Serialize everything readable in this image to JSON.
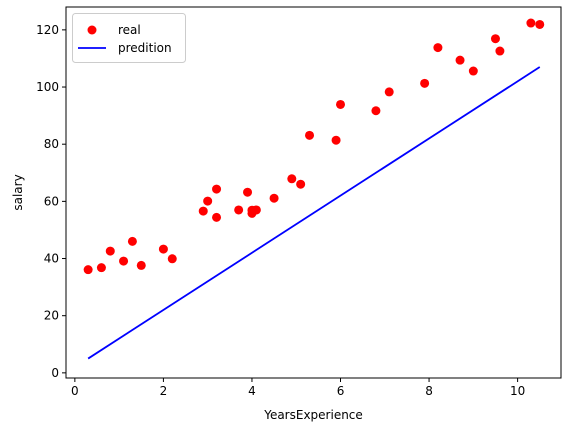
{
  "chart_data": {
    "type": "scatter",
    "xlabel": "YearsExperience",
    "ylabel": "salary",
    "xlim": [
      -0.2,
      10.98
    ],
    "ylim": [
      -1.8,
      128.0
    ],
    "xticks": [
      0,
      2,
      4,
      6,
      8,
      10
    ],
    "yticks": [
      0,
      20,
      40,
      60,
      80,
      100,
      120
    ],
    "grid": false,
    "legend_position": "top-left",
    "series": [
      {
        "name": "real",
        "kind": "scatter",
        "color": "#ff0000",
        "points": [
          [
            0.3,
            36.1
          ],
          [
            0.6,
            36.8
          ],
          [
            0.8,
            42.6
          ],
          [
            1.1,
            39.1
          ],
          [
            1.3,
            46.0
          ],
          [
            1.5,
            37.6
          ],
          [
            2.0,
            43.3
          ],
          [
            2.2,
            39.9
          ],
          [
            2.9,
            56.6
          ],
          [
            3.0,
            60.1
          ],
          [
            3.2,
            54.4
          ],
          [
            3.2,
            64.3
          ],
          [
            3.7,
            57.0
          ],
          [
            3.9,
            63.2
          ],
          [
            4.0,
            55.8
          ],
          [
            4.0,
            56.9
          ],
          [
            4.1,
            57.0
          ],
          [
            4.5,
            61.1
          ],
          [
            4.9,
            67.9
          ],
          [
            5.1,
            66.0
          ],
          [
            5.3,
            83.1
          ],
          [
            5.9,
            81.4
          ],
          [
            6.0,
            93.9
          ],
          [
            6.8,
            91.7
          ],
          [
            7.1,
            98.3
          ],
          [
            7.9,
            101.3
          ],
          [
            8.2,
            113.8
          ],
          [
            8.7,
            109.4
          ],
          [
            9.0,
            105.6
          ],
          [
            9.5,
            116.9
          ],
          [
            9.6,
            112.6
          ],
          [
            10.3,
            122.4
          ],
          [
            10.5,
            121.9
          ]
        ]
      },
      {
        "name": "predition",
        "kind": "line",
        "color": "#0000ff",
        "points": [
          [
            0.3,
            5.0
          ],
          [
            10.5,
            107.0
          ]
        ]
      }
    ]
  }
}
